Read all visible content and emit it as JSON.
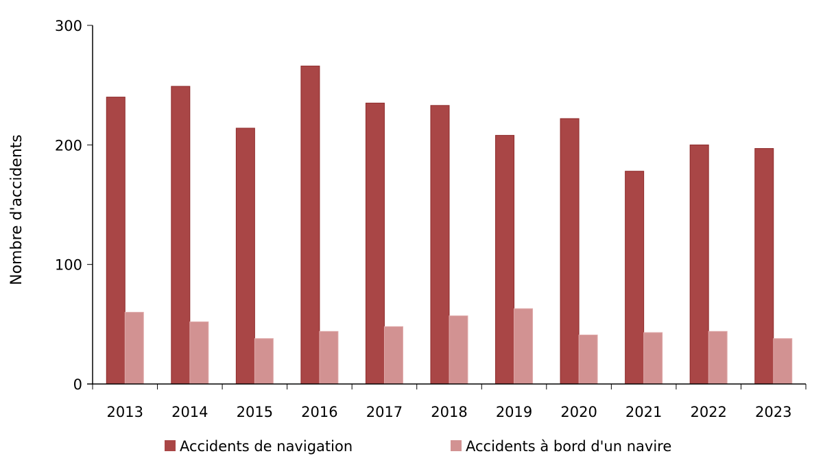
{
  "chart_data": {
    "type": "bar",
    "title": "",
    "xlabel": "",
    "ylabel": "Nombre d'accidents",
    "ylim": [
      0,
      300
    ],
    "yticks": [
      0,
      100,
      200,
      300
    ],
    "grid": false,
    "legend_position": "bottom",
    "categories": [
      "2013",
      "2014",
      "2015",
      "2016",
      "2017",
      "2018",
      "2019",
      "2020",
      "2021",
      "2022",
      "2023"
    ],
    "series": [
      {
        "name": "Accidents de navigation",
        "color": "#a94646",
        "values": [
          240,
          249,
          214,
          266,
          235,
          233,
          208,
          222,
          178,
          200,
          197
        ]
      },
      {
        "name": "Accidents à bord d'un navire",
        "color": "#d29292",
        "values": [
          60,
          52,
          38,
          44,
          48,
          57,
          63,
          41,
          43,
          44,
          38
        ]
      }
    ]
  }
}
